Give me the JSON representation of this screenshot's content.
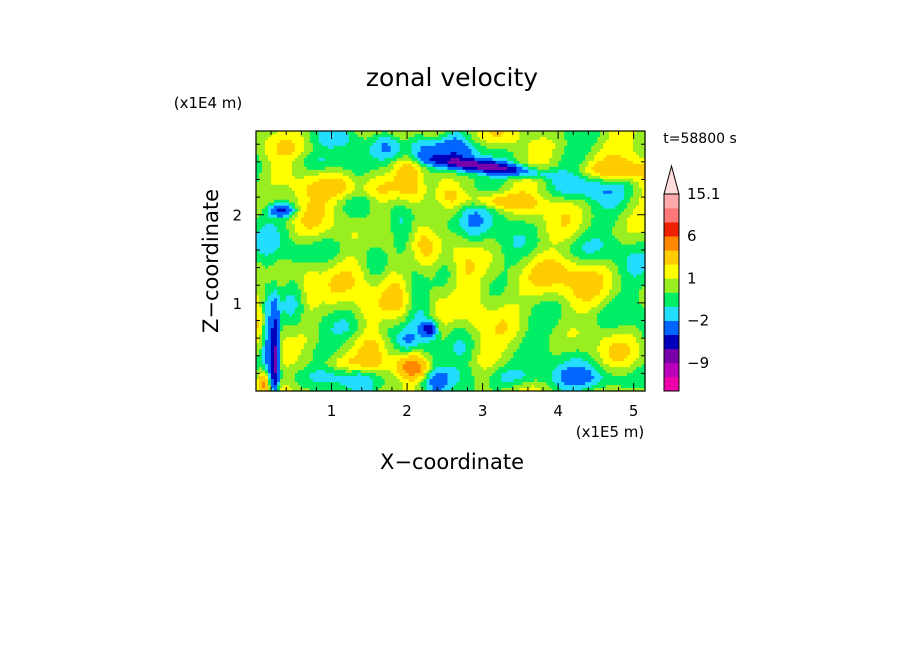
{
  "chart_data": {
    "type": "heatmap",
    "title": "zonal velocity",
    "xlabel": "X−coordinate",
    "ylabel": "Z−coordinate",
    "x_unit": "(x1E5 m)",
    "y_unit": "(x1E4 m)",
    "time_label": "t=58800 s",
    "xlim": [
      0,
      5.15
    ],
    "ylim": [
      0,
      2.95
    ],
    "x_ticks": [
      1,
      2,
      3,
      4,
      5
    ],
    "x_tick_labels": [
      "1",
      "2",
      "3",
      "4",
      "5"
    ],
    "y_ticks": [
      1,
      2
    ],
    "y_tick_labels": [
      "1",
      "2"
    ],
    "colorbar": {
      "levels": [
        -15,
        -12,
        -9,
        -6,
        -4,
        -2,
        -1,
        0,
        1,
        2,
        4,
        6,
        9,
        12,
        15.1
      ],
      "labels": [
        {
          "value": 15.1,
          "text": "15.1"
        },
        {
          "value": 6,
          "text": "6"
        },
        {
          "value": 1,
          "text": "1"
        },
        {
          "value": -2,
          "text": "−2"
        },
        {
          "value": -9,
          "text": "−9"
        }
      ],
      "colors": [
        "#ee00aa",
        "#bb00bb",
        "#7700aa",
        "#0000bb",
        "#0066ff",
        "#22ddff",
        "#00ee66",
        "#99ee22",
        "#ffff00",
        "#ffcc00",
        "#ff8800",
        "#ee2200",
        "#ff7777",
        "#ffaaaa"
      ],
      "extend_max": true,
      "extend_color": "#ffdddd"
    },
    "field": {
      "background_level_value": 0.5,
      "features": [
        {
          "x": 3.0,
          "z": 2.55,
          "sx": 0.5,
          "sz": 0.05,
          "value": -7,
          "tilt": -0.35
        },
        {
          "x": 2.35,
          "z": 2.75,
          "sx": 0.7,
          "sz": 0.09,
          "value": -2.5,
          "tilt": -0.15
        },
        {
          "x": 0.35,
          "z": 2.05,
          "sx": 0.12,
          "sz": 0.05,
          "value": -5,
          "tilt": 0
        },
        {
          "x": 0.25,
          "z": 0.4,
          "sx": 0.04,
          "sz": 0.4,
          "value": -7,
          "tilt": 0
        },
        {
          "x": 0.15,
          "z": 0.55,
          "sx": 0.05,
          "sz": 0.45,
          "value": -3,
          "tilt": 0
        },
        {
          "x": 2.3,
          "z": 0.7,
          "sx": 0.06,
          "sz": 0.06,
          "value": -5,
          "tilt": 0
        },
        {
          "x": 2.0,
          "z": 0.55,
          "sx": 0.1,
          "sz": 0.1,
          "value": -2.5,
          "tilt": 0
        },
        {
          "x": 4.4,
          "z": 2.3,
          "sx": 0.4,
          "sz": 0.1,
          "value": -1.5,
          "tilt": 0.1
        },
        {
          "x": 1.0,
          "z": 2.6,
          "sx": 0.5,
          "sz": 0.08,
          "value": -1.5,
          "tilt": 0
        },
        {
          "x": 2.6,
          "z": 1.9,
          "sx": 0.5,
          "sz": 0.15,
          "value": -1.2,
          "tilt": 0.25
        },
        {
          "x": 1.5,
          "z": 0.7,
          "sx": 0.5,
          "sz": 0.12,
          "value": -1.0,
          "tilt": 0
        },
        {
          "x": 3.5,
          "z": 0.15,
          "sx": 1.2,
          "sz": 0.1,
          "value": -1.0,
          "tilt": 0
        },
        {
          "x": 4.6,
          "z": 0.8,
          "sx": 0.5,
          "sz": 0.15,
          "value": -0.8,
          "tilt": 0
        },
        {
          "x": 0.9,
          "z": 1.6,
          "sx": 0.4,
          "sz": 0.12,
          "value": -1.0,
          "tilt": 0.1
        },
        {
          "x": 3.8,
          "z": 1.2,
          "sx": 0.4,
          "sz": 0.2,
          "value": 1.8,
          "tilt": 0
        },
        {
          "x": 1.2,
          "z": 2.3,
          "sx": 0.5,
          "sz": 0.1,
          "value": 2.5,
          "tilt": -0.1
        },
        {
          "x": 2.1,
          "z": 0.25,
          "sx": 0.15,
          "sz": 0.08,
          "value": 4.0,
          "tilt": 0
        },
        {
          "x": 3.2,
          "z": 2.15,
          "sx": 0.35,
          "sz": 0.06,
          "value": 2.5,
          "tilt": -0.2
        },
        {
          "x": 1.2,
          "z": 0.3,
          "sx": 0.35,
          "sz": 0.07,
          "value": 1.8,
          "tilt": 0
        },
        {
          "x": 0.7,
          "z": 1.1,
          "sx": 0.1,
          "sz": 0.25,
          "value": 2.0,
          "tilt": 0
        },
        {
          "x": 4.7,
          "z": 2.5,
          "sx": 0.3,
          "sz": 0.08,
          "value": 2.5,
          "tilt": 0
        },
        {
          "x": 4.2,
          "z": 1.6,
          "sx": 0.4,
          "sz": 0.1,
          "value": -1.0,
          "tilt": 0
        },
        {
          "x": 1.8,
          "z": 1.2,
          "sx": 0.25,
          "sz": 0.5,
          "value": 1.2,
          "tilt": 0.3
        },
        {
          "x": 0.1,
          "z": 0.1,
          "sx": 0.05,
          "sz": 0.1,
          "value": 5.0,
          "tilt": 0
        }
      ]
    }
  }
}
